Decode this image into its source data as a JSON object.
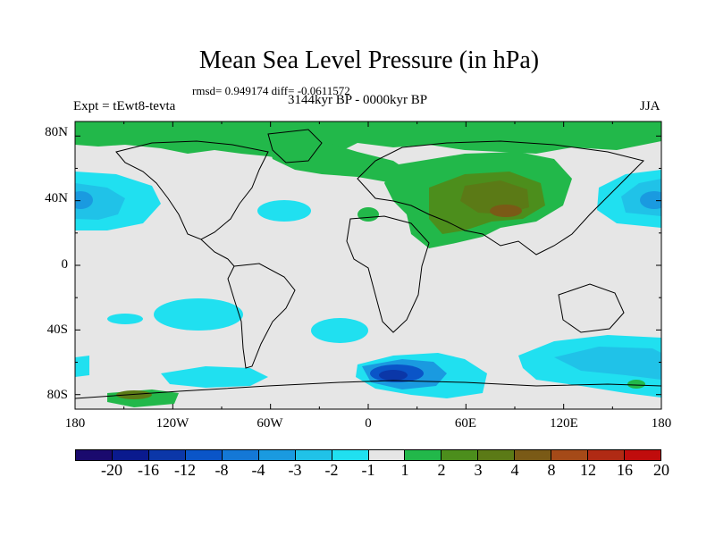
{
  "title": "Mean Sea Level Pressure (in hPa)",
  "stats": "rmsd= 0.949174 diff= -0.0611572",
  "experiment": "Expt = tEwt8-tevta",
  "period": "3144kyr BP - 0000kyr BP",
  "season": "JJA",
  "lat_labels": [
    "80N",
    "40N",
    "0",
    "40S",
    "80S"
  ],
  "lon_labels": [
    "180",
    "120W",
    "60W",
    "0",
    "60E",
    "120E",
    "180"
  ],
  "legend": {
    "colors": [
      "#1a0a6e",
      "#0a1a8e",
      "#0b37a8",
      "#0a55c8",
      "#1478d6",
      "#1a9ae0",
      "#20c2e8",
      "#20e0f0",
      "#e6e6e6",
      "#22b84a",
      "#4c8e1c",
      "#5b7a16",
      "#7a5a16",
      "#a54a18",
      "#b02a14",
      "#c00c0c"
    ],
    "labels": [
      "-20",
      "-16",
      "-12",
      "-8",
      "-4",
      "-3",
      "-2",
      "-1",
      "1",
      "2",
      "3",
      "4",
      "8",
      "12",
      "16",
      "20"
    ]
  }
}
